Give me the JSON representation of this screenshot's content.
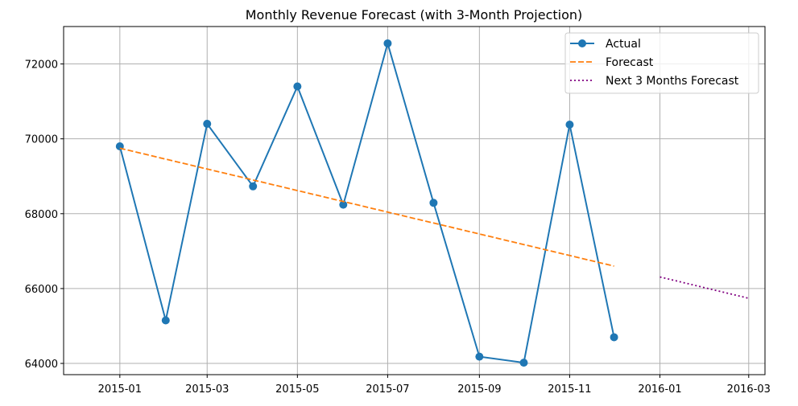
{
  "chart_data": {
    "type": "line",
    "title": "Monthly Revenue Forecast (with 3-Month Projection)",
    "xlabel": "",
    "ylabel": "",
    "grid": true,
    "legend_position": "top-right",
    "x_range": [
      "2014-11-24",
      "2016-03-12"
    ],
    "ylim": [
      63700,
      73000
    ],
    "x_ticks": [
      "2015-01",
      "2015-03",
      "2015-05",
      "2015-07",
      "2015-09",
      "2015-11",
      "2016-01",
      "2016-03"
    ],
    "y_ticks": [
      64000,
      66000,
      68000,
      70000,
      72000
    ],
    "series": [
      {
        "name": "Actual",
        "style": "solid-markers",
        "color": "#1f77b4",
        "points": [
          {
            "x": "2015-01-01",
            "y": 69800
          },
          {
            "x": "2015-02-01",
            "y": 65150
          },
          {
            "x": "2015-03-01",
            "y": 70400
          },
          {
            "x": "2015-04-01",
            "y": 68730
          },
          {
            "x": "2015-05-01",
            "y": 71400
          },
          {
            "x": "2015-06-01",
            "y": 68240
          },
          {
            "x": "2015-07-01",
            "y": 72550
          },
          {
            "x": "2015-08-01",
            "y": 68290
          },
          {
            "x": "2015-09-01",
            "y": 64180
          },
          {
            "x": "2015-10-01",
            "y": 64020
          },
          {
            "x": "2015-11-01",
            "y": 70380
          },
          {
            "x": "2015-12-01",
            "y": 64700
          }
        ]
      },
      {
        "name": "Forecast",
        "style": "dashed",
        "color": "#ff7f0e",
        "points": [
          {
            "x": "2015-01-01",
            "y": 69750
          },
          {
            "x": "2015-12-01",
            "y": 66600
          }
        ]
      },
      {
        "name": "Next 3 Months Forecast",
        "style": "dotted",
        "color": "#800080",
        "points": [
          {
            "x": "2016-01-01",
            "y": 66310
          },
          {
            "x": "2016-03-01",
            "y": 65740
          }
        ]
      }
    ]
  }
}
